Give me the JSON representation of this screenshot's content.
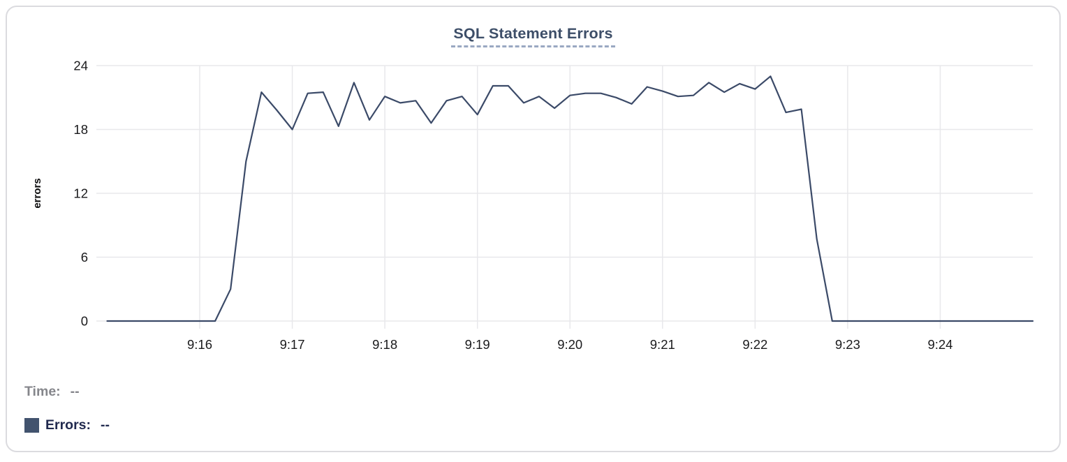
{
  "colors": {
    "line": "#3b4a68",
    "title": "#3d4e68",
    "title_underline": "#9aa8c2",
    "gridline": "#e8e8eb",
    "tick_text": "#1a1a1c",
    "legend_time_gray": "#85868b",
    "legend_errors_navy": "#20294e",
    "legend_swatch": "#42536e",
    "card_border": "#dbdbdf"
  },
  "legend": {
    "time_label": "Time:",
    "time_value": "--",
    "errors_label": "Errors:",
    "errors_value": "--",
    "swatch_color": "#42536e",
    "swatch_icon": "square-swatch"
  },
  "chart_data": {
    "type": "line",
    "title": "SQL Statement Errors",
    "xlabel": "",
    "ylabel": "errors",
    "ylim": [
      0,
      24
    ],
    "y_ticks": [
      0,
      6,
      12,
      18,
      24
    ],
    "x_ticks": [
      "9:16",
      "9:17",
      "9:18",
      "9:19",
      "9:20",
      "9:21",
      "9:22",
      "9:23",
      "9:24"
    ],
    "x_domain": [
      "9:14:53",
      "9:25:00"
    ],
    "grid": true,
    "legend_position": "bottom-left",
    "series": [
      {
        "name": "Errors",
        "color": "#3b4a68",
        "points": [
          [
            "9:15:00",
            0
          ],
          [
            "9:15:10",
            0
          ],
          [
            "9:15:20",
            0
          ],
          [
            "9:15:30",
            0
          ],
          [
            "9:15:40",
            0
          ],
          [
            "9:15:50",
            0
          ],
          [
            "9:16:00",
            0
          ],
          [
            "9:16:10",
            0
          ],
          [
            "9:16:20",
            3
          ],
          [
            "9:16:30",
            15
          ],
          [
            "9:16:40",
            21.5
          ],
          [
            "9:16:50",
            19.8
          ],
          [
            "9:17:00",
            18
          ],
          [
            "9:17:10",
            21.4
          ],
          [
            "9:17:20",
            21.5
          ],
          [
            "9:17:30",
            18.3
          ],
          [
            "9:17:40",
            22.4
          ],
          [
            "9:17:50",
            18.9
          ],
          [
            "9:18:00",
            21.1
          ],
          [
            "9:18:10",
            20.5
          ],
          [
            "9:18:20",
            20.7
          ],
          [
            "9:18:30",
            18.6
          ],
          [
            "9:18:40",
            20.7
          ],
          [
            "9:18:50",
            21.1
          ],
          [
            "9:19:00",
            19.4
          ],
          [
            "9:19:10",
            22.1
          ],
          [
            "9:19:20",
            22.1
          ],
          [
            "9:19:30",
            20.5
          ],
          [
            "9:19:40",
            21.1
          ],
          [
            "9:19:50",
            20
          ],
          [
            "9:20:00",
            21.2
          ],
          [
            "9:20:10",
            21.4
          ],
          [
            "9:20:20",
            21.4
          ],
          [
            "9:20:30",
            21
          ],
          [
            "9:20:40",
            20.4
          ],
          [
            "9:20:50",
            22
          ],
          [
            "9:21:00",
            21.6
          ],
          [
            "9:21:10",
            21.1
          ],
          [
            "9:21:20",
            21.2
          ],
          [
            "9:21:30",
            22.4
          ],
          [
            "9:21:40",
            21.5
          ],
          [
            "9:21:50",
            22.3
          ],
          [
            "9:22:00",
            21.8
          ],
          [
            "9:22:10",
            23
          ],
          [
            "9:22:20",
            19.6
          ],
          [
            "9:22:30",
            19.9
          ],
          [
            "9:22:40",
            7.7
          ],
          [
            "9:22:50",
            0
          ],
          [
            "9:23:00",
            0
          ],
          [
            "9:23:10",
            0
          ],
          [
            "9:23:20",
            0
          ],
          [
            "9:23:30",
            0
          ],
          [
            "9:23:40",
            0
          ],
          [
            "9:23:50",
            0
          ],
          [
            "9:24:00",
            0
          ],
          [
            "9:24:10",
            0
          ],
          [
            "9:24:20",
            0
          ],
          [
            "9:24:30",
            0
          ],
          [
            "9:24:40",
            0
          ],
          [
            "9:24:50",
            0
          ],
          [
            "9:25:00",
            0
          ]
        ]
      }
    ]
  }
}
